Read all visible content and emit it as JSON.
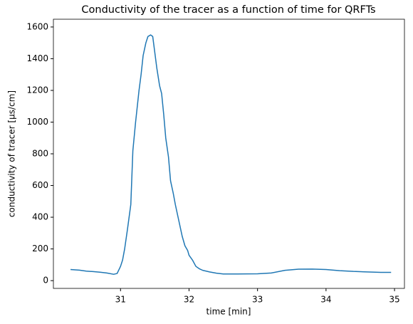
{
  "chart_data": {
    "type": "line",
    "title": "Conductivity of the tracer as a function of time for QRFTs",
    "xlabel": "time [min]",
    "ylabel": "conductivity of tracer [µs/cm]",
    "color": "#1f77b4",
    "x": [
      30.27,
      30.4,
      30.5,
      30.6,
      30.7,
      30.8,
      30.9,
      30.95,
      31.0,
      31.03,
      31.06,
      31.1,
      31.15,
      31.18,
      31.22,
      31.27,
      31.3,
      31.33,
      31.37,
      31.4,
      31.44,
      31.47,
      31.5,
      31.53,
      31.57,
      31.6,
      31.63,
      31.66,
      31.7,
      31.73,
      31.77,
      31.8,
      31.85,
      31.9,
      31.94,
      31.98,
      32.0,
      32.05,
      32.1,
      32.15,
      32.2,
      32.3,
      32.4,
      32.5,
      32.7,
      33.0,
      33.2,
      33.4,
      33.6,
      33.8,
      34.0,
      34.2,
      34.4,
      34.6,
      34.8,
      34.9,
      34.95
    ],
    "values": [
      70,
      66,
      60,
      57,
      53,
      48,
      40,
      45,
      90,
      130,
      200,
      320,
      480,
      820,
      1000,
      1200,
      1300,
      1420,
      1500,
      1540,
      1550,
      1540,
      1440,
      1340,
      1230,
      1180,
      1050,
      900,
      780,
      630,
      550,
      480,
      380,
      280,
      220,
      190,
      160,
      130,
      90,
      75,
      65,
      55,
      47,
      42,
      42,
      43,
      48,
      65,
      72,
      73,
      70,
      63,
      58,
      55,
      52,
      52,
      52
    ],
    "xlim": [
      30.02,
      35.145
    ],
    "ylim": [
      -49,
      1649
    ],
    "xticks": [
      31,
      32,
      33,
      34,
      35
    ],
    "yticks": [
      0,
      200,
      400,
      600,
      800,
      1000,
      1200,
      1400,
      1600
    ],
    "grid": false
  }
}
